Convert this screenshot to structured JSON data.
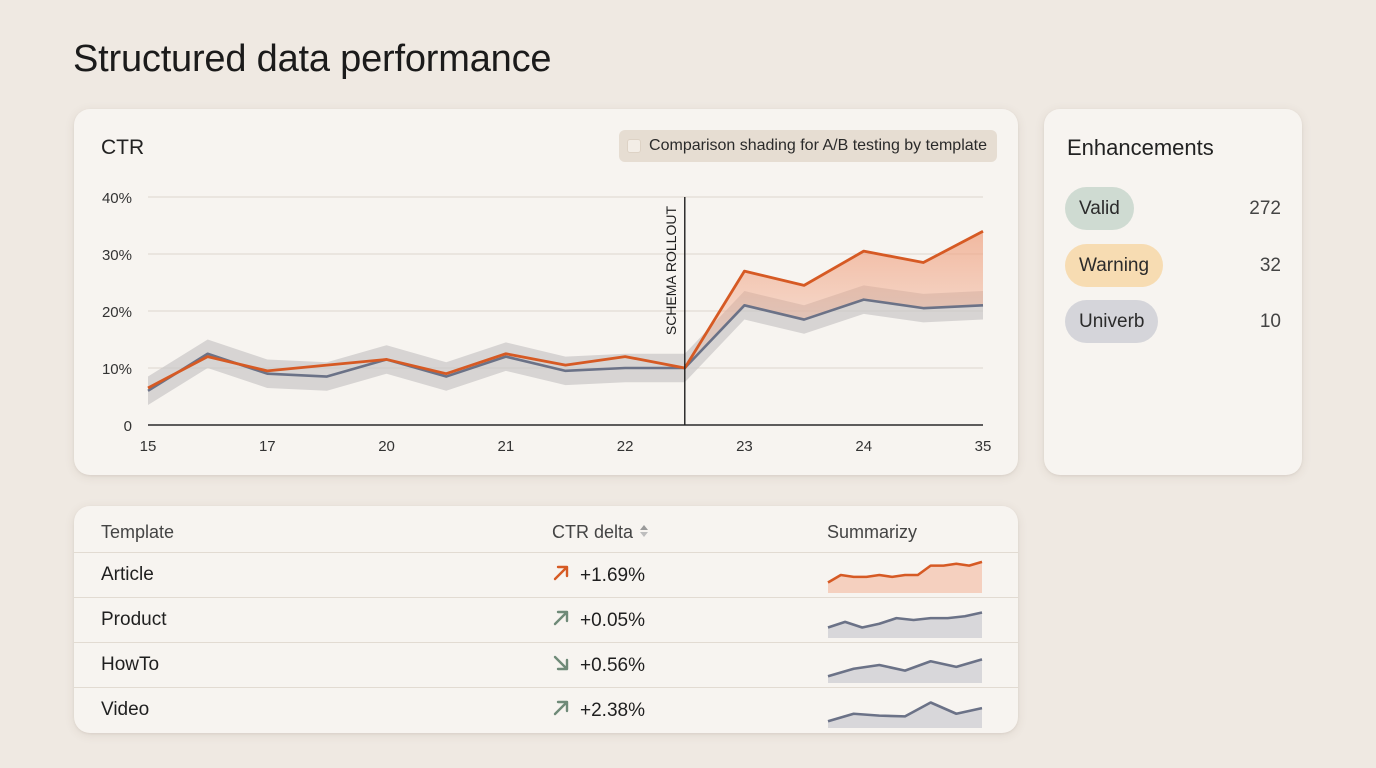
{
  "page": {
    "title": "Structured data performance"
  },
  "ctr_chart": {
    "title": "CTR",
    "legend_label": "Comparison shading for A/B testing by template",
    "annotation": "SCHEMA ROLLOUT",
    "colors": {
      "primary": "#d65a24",
      "secondary": "#6b7287",
      "shade_primary": "#f0a585",
      "shade_secondary": "#c9c6c6"
    }
  },
  "chart_data": {
    "type": "line",
    "title": "CTR",
    "x": [
      "15",
      "",
      "17",
      "",
      "20",
      "",
      "21",
      "",
      "22",
      "",
      "23",
      "",
      "24",
      "",
      "35"
    ],
    "x_tick_labels": [
      "15",
      "17",
      "20",
      "21",
      "22",
      "23",
      "24",
      "35"
    ],
    "y_tick_labels": [
      "0",
      "10%",
      "20%",
      "30%",
      "40%"
    ],
    "ylim": [
      0,
      40
    ],
    "grid": true,
    "series": [
      {
        "values": [
          6.5,
          12,
          9.5,
          10.5,
          11.5,
          9,
          12.5,
          10.5,
          12,
          10,
          27,
          24.5,
          30.5,
          28.5,
          34
        ]
      },
      {
        "values": [
          6,
          12.5,
          9,
          8.5,
          11.5,
          8.5,
          12,
          9.5,
          10,
          10,
          21,
          18.5,
          22,
          20.5,
          21
        ]
      }
    ],
    "annotations": [
      {
        "x_index": 9,
        "label": "SCHEMA ROLLOUT"
      }
    ]
  },
  "enhancements": {
    "title": "Enhancements",
    "items": [
      {
        "label": "Valid",
        "count": "272",
        "color": "#cfdbd2"
      },
      {
        "label": "Warning",
        "count": "32",
        "color": "#f7dcb2"
      },
      {
        "label": "Univerb",
        "count": "10",
        "color": "#d5d5da"
      }
    ]
  },
  "templates_table": {
    "headers": {
      "template": "Template",
      "ctr_delta": "CTR delta",
      "summary": "Summarizy"
    },
    "rows": [
      {
        "name": "Article",
        "delta": "+1.69%",
        "trend": "up",
        "color": "#d65a24",
        "spark": [
          2,
          4,
          3.5,
          3.5,
          4,
          3.5,
          4,
          4,
          6.5,
          6.5,
          7,
          6.5,
          7.5
        ]
      },
      {
        "name": "Product",
        "delta": "+0.05%",
        "trend": "up",
        "color": "#6b7287",
        "spark": [
          2,
          3.5,
          2,
          3,
          4.5,
          4,
          4.5,
          4.5,
          5,
          6
        ]
      },
      {
        "name": "HowTo",
        "delta": "+0.56%",
        "trend": "down",
        "color": "#6b7287",
        "spark": [
          1,
          3,
          4,
          2.5,
          5,
          3.5,
          5.5
        ]
      },
      {
        "name": "Video",
        "delta": "+2.38%",
        "trend": "up",
        "color": "#6b7287",
        "spark": [
          1,
          3,
          2.5,
          2.3,
          6,
          3,
          4.5
        ]
      }
    ]
  }
}
